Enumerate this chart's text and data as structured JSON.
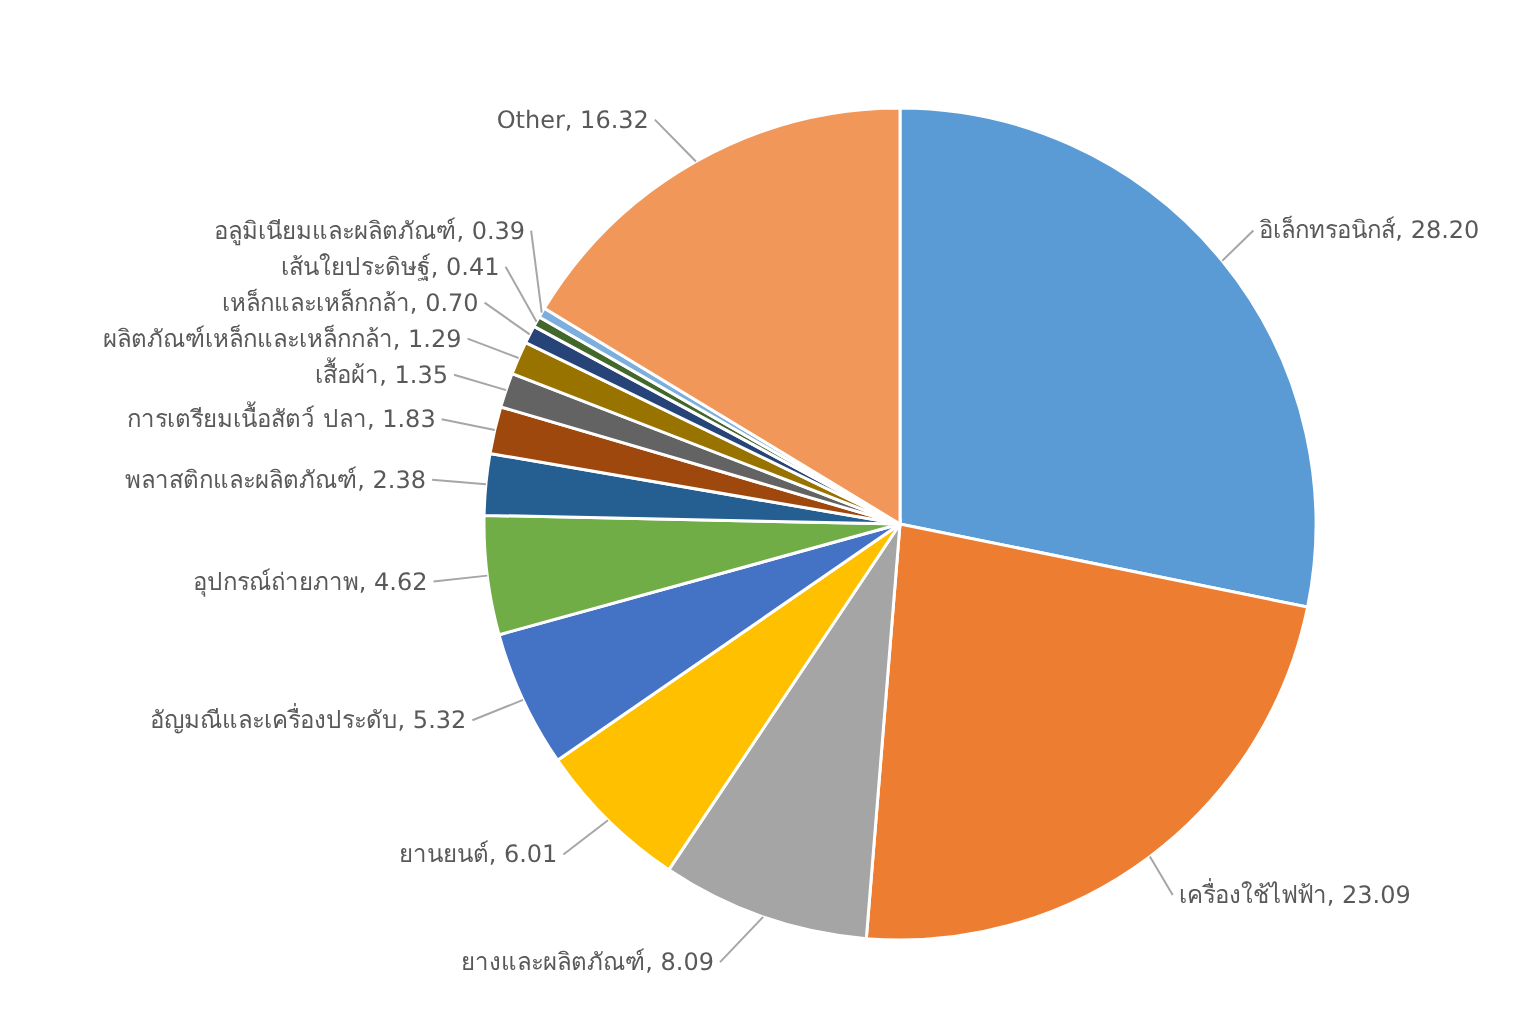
{
  "chart_data": {
    "type": "pie",
    "categories": [
      "อิเล็กทรอนิกส์",
      "เครื่องใช้ไฟฟ้า",
      "ยางและผลิตภัณฑ์",
      "ยานยนต์",
      "อัญมณีและเครื่องประดับ",
      "อุปกรณ์ถ่ายภาพ",
      "พลาสติกและผลิตภัณฑ์",
      "การเตรียมเนื้อสัตว์ ปลา",
      "เสื้อผ้า",
      "ผลิตภัณฑ์เหล็กและเหล็กกล้า",
      "เหล็กและเหล็กกล้า",
      "เส้นใยประดิษฐ์",
      "อลูมิเนียมและผลิตภัณฑ์",
      "Other"
    ],
    "values": [
      28.2,
      23.09,
      8.09,
      6.01,
      5.32,
      4.62,
      2.38,
      1.83,
      1.35,
      1.29,
      0.7,
      0.41,
      0.39,
      16.32
    ],
    "value_labels": [
      "28.20",
      "23.09",
      "8.09",
      "6.01",
      "5.32",
      "4.62",
      "2.38",
      "1.83",
      "1.35",
      "1.29",
      "0.70",
      "0.41",
      "0.39",
      "16.32"
    ],
    "colors": [
      "#5b9bd5",
      "#ed7d31",
      "#a5a5a5",
      "#ffc000",
      "#4472c4",
      "#70ad47",
      "#255e91",
      "#9e480e",
      "#636363",
      "#997300",
      "#264478",
      "#43682b",
      "#7cafdd",
      "#f1975a"
    ]
  }
}
